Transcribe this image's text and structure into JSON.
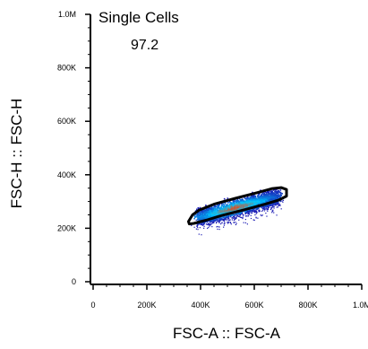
{
  "chart_data": {
    "type": "scatter",
    "subtype": "flow-cytometry-density-dot-plot",
    "title": "",
    "xlabel": "FSC-A :: FSC-A",
    "ylabel": "FSC-H :: FSC-H",
    "xlim": [
      0,
      1000000
    ],
    "ylim": [
      0,
      1000000
    ],
    "x_ticks": [
      {
        "value": 0,
        "label": "0"
      },
      {
        "value": 200000,
        "label": "200K"
      },
      {
        "value": 400000,
        "label": "400K"
      },
      {
        "value": 600000,
        "label": "600K"
      },
      {
        "value": 800000,
        "label": "800K"
      },
      {
        "value": 1000000,
        "label": "1.0M"
      }
    ],
    "y_ticks": [
      {
        "value": 0,
        "label": "0"
      },
      {
        "value": 200000,
        "label": "200K"
      },
      {
        "value": 400000,
        "label": "400K"
      },
      {
        "value": 600000,
        "label": "600K"
      },
      {
        "value": 800000,
        "label": "800K"
      },
      {
        "value": 1000000,
        "label": "1.0M"
      }
    ],
    "gate": {
      "name": "Single Cells",
      "value": "97.2",
      "polygon": [
        [
          355000,
          225000
        ],
        [
          370000,
          250000
        ],
        [
          395000,
          268000
        ],
        [
          450000,
          290000
        ],
        [
          530000,
          312000
        ],
        [
          610000,
          333000
        ],
        [
          665000,
          348000
        ],
        [
          700000,
          352000
        ],
        [
          720000,
          345000
        ],
        [
          720000,
          320000
        ],
        [
          690000,
          305000
        ],
        [
          640000,
          290000
        ],
        [
          560000,
          268000
        ],
        [
          480000,
          248000
        ],
        [
          420000,
          230000
        ],
        [
          375000,
          218000
        ],
        [
          358000,
          216000
        ]
      ]
    },
    "population": {
      "center_start": [
        390000,
        242000
      ],
      "center_end": [
        690000,
        322000
      ],
      "spread_y": 14000,
      "scatter_tail_below": 45000
    },
    "colors": {
      "gate": "#000000",
      "density_low": "#1a1ab4",
      "density_mid": "#00c8ff",
      "density_high": "#ff3c00"
    }
  }
}
